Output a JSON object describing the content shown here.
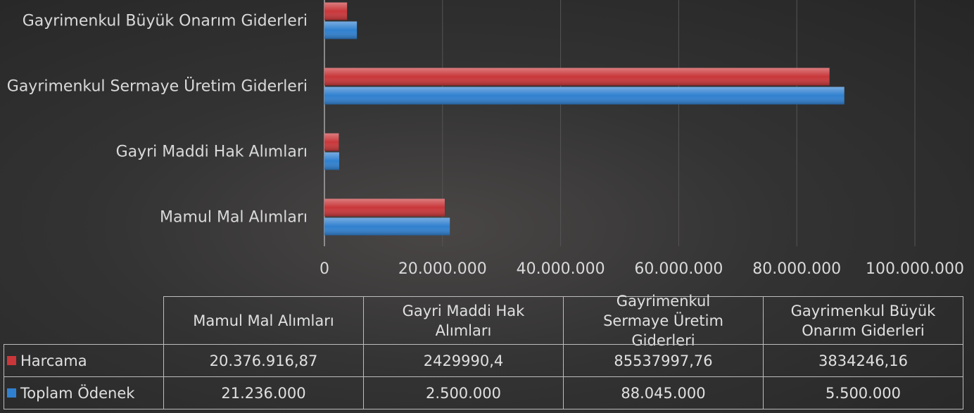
{
  "chart_data": {
    "type": "barh",
    "categories": [
      "Mamul Mal Alımları",
      "Gayri Maddi Hak Alımları",
      "Gayrimenkul Sermaye Üretim Giderleri",
      "Gayrimenkul Büyük Onarım Giderleri"
    ],
    "series": [
      {
        "name": "Harcama",
        "color": "#c9373a",
        "values": [
          20376916.87,
          2429990.4,
          85537997.76,
          3834246.16
        ],
        "value_labels": [
          "20.376.916,87",
          "2429990,4",
          "85537997,76",
          "3834246,16"
        ]
      },
      {
        "name": "Toplam Ödenek",
        "color": "#3080d0",
        "values": [
          21236000,
          2500000,
          88045000,
          5500000
        ],
        "value_labels": [
          "21.236.000",
          "2.500.000",
          "88.045.000",
          "5.500.000"
        ]
      }
    ],
    "xlim": [
      0,
      100000000
    ],
    "xticks": [
      0,
      {
        "value": 20000000,
        "label": "20.000.000"
      },
      {
        "value": 40000000,
        "label": "40.000.000"
      },
      {
        "value": 60000000,
        "label": "60.000.000"
      },
      {
        "value": 80000000,
        "label": "80.000.000"
      },
      {
        "value": 100000000,
        "label": "100.000.000"
      }
    ],
    "grid": true
  }
}
